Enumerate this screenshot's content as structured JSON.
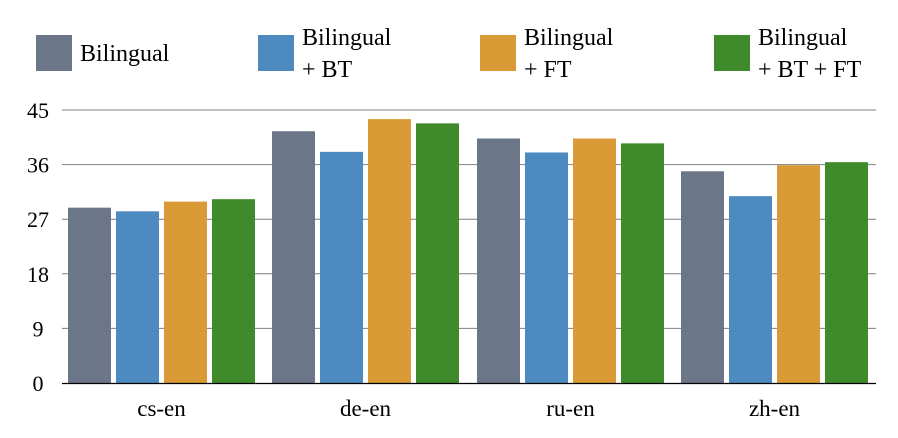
{
  "chart_data": {
    "type": "bar",
    "categories": [
      "cs-en",
      "de-en",
      "ru-en",
      "zh-en"
    ],
    "series": [
      {
        "name": "Bilingual",
        "legend_lines": [
          "Bilingual"
        ],
        "color": "#6b7789",
        "values": [
          28.9,
          41.5,
          40.3,
          34.9
        ]
      },
      {
        "name": "Bilingual + BT",
        "legend_lines": [
          "Bilingual",
          "+ BT"
        ],
        "color": "#4d8ac0",
        "values": [
          28.3,
          38.1,
          38.0,
          30.8
        ]
      },
      {
        "name": "Bilingual + FT",
        "legend_lines": [
          "Bilingual",
          "+ FT"
        ],
        "color": "#da9a35",
        "values": [
          29.9,
          43.5,
          40.3,
          35.9
        ]
      },
      {
        "name": "Bilingual + BT + FT",
        "legend_lines": [
          "Bilingual",
          "+ BT + FT"
        ],
        "color": "#3f8b2b",
        "values": [
          30.3,
          42.8,
          39.5,
          36.4
        ]
      }
    ],
    "yticks": [
      0,
      9,
      18,
      27,
      36,
      45
    ],
    "ylim": [
      0,
      45
    ],
    "grid": true,
    "legend_position": "top",
    "title": "",
    "xlabel": "",
    "ylabel": ""
  }
}
